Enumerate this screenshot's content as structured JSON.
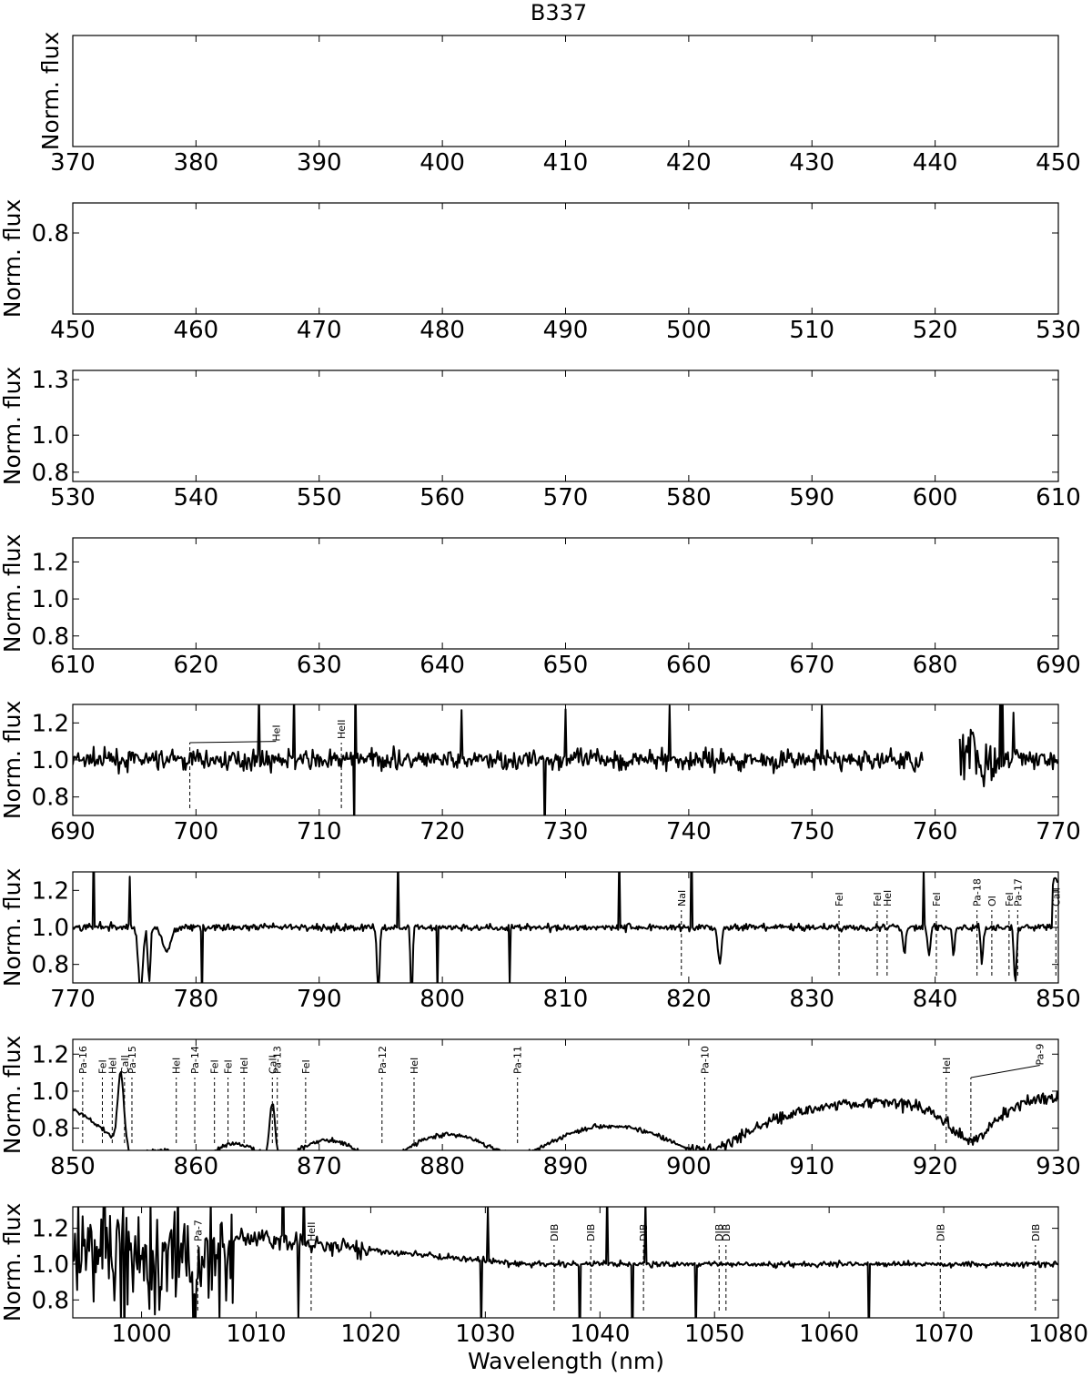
{
  "chart_data": {
    "type": "line",
    "title": "B337",
    "xlabel": "Wavelength (nm)",
    "ylabel": "Norm. flux",
    "panels": [
      {
        "xlim": [
          370,
          450
        ],
        "xticks": [
          370,
          380,
          390,
          400,
          410,
          420,
          430,
          440,
          450
        ],
        "yticks": [],
        "ylim": [
          0.7,
          1.3
        ],
        "empty": true
      },
      {
        "xlim": [
          450,
          530
        ],
        "xticks": [
          450,
          460,
          470,
          480,
          490,
          500,
          510,
          520,
          530
        ],
        "yticks": [
          "0.8"
        ],
        "ylim": [
          0.7,
          1.0
        ],
        "empty": true
      },
      {
        "xlim": [
          530,
          610
        ],
        "xticks": [
          530,
          540,
          550,
          560,
          570,
          580,
          590,
          600,
          610
        ],
        "yticks": [
          "1.3",
          "1.0",
          "0.8"
        ],
        "ytick_values": [
          1.3,
          1.0,
          0.8
        ],
        "ylim": [
          0.75,
          1.35
        ],
        "empty": true
      },
      {
        "xlim": [
          610,
          690
        ],
        "xticks": [
          610,
          620,
          630,
          640,
          650,
          660,
          670,
          680,
          690
        ],
        "yticks": [
          "1.2",
          "1.0",
          "0.8"
        ],
        "ytick_values": [
          1.2,
          1.0,
          0.8
        ],
        "ylim": [
          0.73,
          1.33
        ],
        "empty": true
      },
      {
        "xlim": [
          690,
          770
        ],
        "xticks": [
          690,
          700,
          710,
          720,
          730,
          740,
          750,
          760,
          770
        ],
        "yticks": [
          "1.2",
          "1.0",
          "0.8"
        ],
        "ytick_values": [
          1.2,
          1.0,
          0.8
        ],
        "ylim": [
          0.7,
          1.3
        ],
        "lines": [
          {
            "x": 699.5,
            "label": "HeI",
            "lx": 706.5,
            "ly": 1.1
          },
          {
            "x": 711.8,
            "label": "HeII"
          }
        ]
      },
      {
        "xlim": [
          770,
          850
        ],
        "xticks": [
          770,
          780,
          790,
          800,
          810,
          820,
          830,
          840,
          850
        ],
        "yticks": [
          "1.2",
          "1.0",
          "0.8"
        ],
        "ytick_values": [
          1.2,
          1.0,
          0.8
        ],
        "ylim": [
          0.7,
          1.3
        ],
        "lines": [
          {
            "x": 819.4,
            "label": "NaI"
          },
          {
            "x": 832.2,
            "label": "FeI"
          },
          {
            "x": 835.3,
            "label": "FeI"
          },
          {
            "x": 836.1,
            "label": "HeI"
          },
          {
            "x": 840.1,
            "label": "FeI"
          },
          {
            "x": 843.4,
            "label": "Pa-18"
          },
          {
            "x": 844.6,
            "label": "OI"
          },
          {
            "x": 846.0,
            "label": "FeI"
          },
          {
            "x": 846.7,
            "label": "Pa-17"
          },
          {
            "x": 849.8,
            "label": "CaII"
          }
        ]
      },
      {
        "xlim": [
          850,
          930
        ],
        "xticks": [
          850,
          860,
          870,
          880,
          890,
          900,
          910,
          920,
          930
        ],
        "yticks": [
          "1.2",
          "1.0",
          "0.8"
        ],
        "ytick_values": [
          1.2,
          1.0,
          0.8
        ],
        "ylim": [
          0.68,
          1.28
        ],
        "lines": [
          {
            "x": 850.8,
            "label": "Pa-16"
          },
          {
            "x": 852.4,
            "label": "FeI"
          },
          {
            "x": 853.2,
            "label": "HeI"
          },
          {
            "x": 854.2,
            "label": "CaII"
          },
          {
            "x": 854.8,
            "label": "Pa-15"
          },
          {
            "x": 858.4,
            "label": "HeI"
          },
          {
            "x": 859.9,
            "label": "Pa-14"
          },
          {
            "x": 861.5,
            "label": "FeI"
          },
          {
            "x": 862.6,
            "label": "FeI"
          },
          {
            "x": 863.9,
            "label": "HeI"
          },
          {
            "x": 866.2,
            "label": "CaII"
          },
          {
            "x": 866.6,
            "label": "Pa-13"
          },
          {
            "x": 868.9,
            "label": "FeI"
          },
          {
            "x": 875.1,
            "label": "Pa-12"
          },
          {
            "x": 877.7,
            "label": "HeI"
          },
          {
            "x": 886.1,
            "label": "Pa-11"
          },
          {
            "x": 901.3,
            "label": "Pa-10"
          },
          {
            "x": 920.9,
            "label": "HeI"
          },
          {
            "x": 922.9,
            "label": "Pa-9",
            "lx": 928.5,
            "ly": 1.14
          }
        ]
      },
      {
        "xlim": [
          994,
          1080
        ],
        "xticks": [
          1000,
          1010,
          1020,
          1030,
          1040,
          1050,
          1060,
          1070,
          1080
        ],
        "yticks": [
          "1.2",
          "1.0",
          "0.8"
        ],
        "ytick_values": [
          1.2,
          1.0,
          0.8
        ],
        "ylim": [
          0.7,
          1.32
        ],
        "lines": [
          {
            "x": 1004.9,
            "label": "Pa-7"
          },
          {
            "x": 1014.8,
            "label": "HeII"
          },
          {
            "x": 1036.0,
            "label": "DIB"
          },
          {
            "x": 1039.2,
            "label": "DIB"
          },
          {
            "x": 1043.8,
            "label": "DIB"
          },
          {
            "x": 1050.4,
            "label": "DIB"
          },
          {
            "x": 1051.0,
            "label": "DIB"
          },
          {
            "x": 1069.7,
            "label": "DIB"
          },
          {
            "x": 1078.0,
            "label": "DIB"
          }
        ]
      }
    ]
  }
}
